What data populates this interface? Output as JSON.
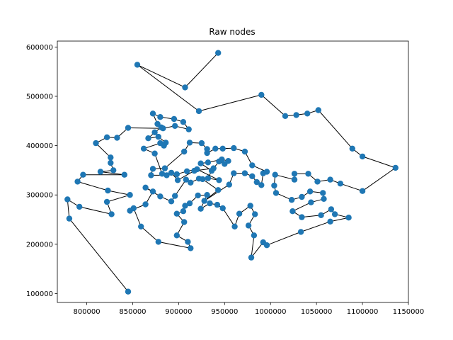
{
  "chart_data": {
    "type": "scatter",
    "title": "Raw nodes",
    "xlabel": "",
    "ylabel": "",
    "xlim": [
      768000,
      1150000
    ],
    "ylim": [
      82000,
      612000
    ],
    "xticks": [
      800000,
      850000,
      900000,
      950000,
      1000000,
      1050000,
      1100000,
      1150000
    ],
    "xtick_labels": [
      "800000",
      "850000",
      "900000",
      "950000",
      "1000000",
      "1050000",
      "1100000",
      "1150000"
    ],
    "yticks": [
      100000,
      200000,
      300000,
      400000,
      500000,
      600000
    ],
    "ytick_labels": [
      "100000",
      "200000",
      "300000",
      "400000",
      "500000",
      "600000"
    ],
    "grid": false,
    "marker_color": "#1f77b4",
    "line_color": "#000000",
    "series": [
      {
        "points": [
          [
            943000,
            588000
          ],
          [
            907000,
            518000
          ],
          [
            855000,
            564000
          ],
          [
            922000,
            470000
          ],
          [
            990000,
            503000
          ],
          [
            1016000,
            460000
          ],
          [
            1028000,
            462000
          ],
          [
            1040000,
            465000
          ],
          [
            1052000,
            472000
          ],
          [
            1089000,
            394000
          ],
          [
            1100000,
            378000
          ],
          [
            1136000,
            355000
          ],
          [
            1100000,
            308000
          ],
          [
            1076000,
            323000
          ],
          [
            1065000,
            331000
          ],
          [
            1051000,
            327000
          ],
          [
            1041000,
            343000
          ],
          [
            1026000,
            343000
          ],
          [
            1026000,
            331000
          ],
          [
            1005000,
            341000
          ],
          [
            1004000,
            319000
          ],
          [
            1006000,
            304000
          ],
          [
            1023000,
            290000
          ],
          [
            1034000,
            296000
          ],
          [
            1043000,
            307000
          ],
          [
            1057000,
            304000
          ],
          [
            1058000,
            292000
          ],
          [
            1044000,
            285000
          ],
          [
            1024000,
            267000
          ],
          [
            1034000,
            255000
          ],
          [
            1055000,
            259000
          ],
          [
            1066000,
            271000
          ],
          [
            1070000,
            261000
          ],
          [
            1085000,
            254000
          ],
          [
            1065000,
            246000
          ],
          [
            1033000,
            225000
          ],
          [
            996000,
            198000
          ],
          [
            992000,
            204000
          ],
          [
            979000,
            173000
          ],
          [
            982000,
            218000
          ],
          [
            976000,
            238000
          ],
          [
            983000,
            261000
          ],
          [
            978000,
            278000
          ],
          [
            966000,
            262000
          ],
          [
            961000,
            236000
          ],
          [
            948000,
            273000
          ],
          [
            942000,
            280000
          ],
          [
            934000,
            283000
          ],
          [
            924000,
            272000
          ],
          [
            931000,
            300000
          ],
          [
            921000,
            299000
          ],
          [
            912000,
            283000
          ],
          [
            907000,
            278000
          ],
          [
            905000,
            267000
          ],
          [
            898000,
            262000
          ],
          [
            906000,
            245000
          ],
          [
            898000,
            218000
          ],
          [
            910000,
            205000
          ],
          [
            913000,
            192000
          ],
          [
            878000,
            205000
          ],
          [
            859000,
            236000
          ],
          [
            851000,
            273000
          ],
          [
            847000,
            268000
          ],
          [
            864000,
            281000
          ],
          [
            872000,
            307000
          ],
          [
            864000,
            315000
          ],
          [
            880000,
            297000
          ],
          [
            892000,
            287000
          ],
          [
            896000,
            298000
          ],
          [
            908000,
            331000
          ],
          [
            913000,
            325000
          ],
          [
            922000,
            333000
          ],
          [
            926000,
            332000
          ],
          [
            943000,
            310000
          ],
          [
            928000,
            288000
          ],
          [
            955000,
            321000
          ],
          [
            960000,
            344000
          ],
          [
            972000,
            344000
          ],
          [
            980000,
            338000
          ],
          [
            985000,
            326000
          ],
          [
            990000,
            320000
          ],
          [
            992000,
            344000
          ],
          [
            996000,
            347000
          ],
          [
            980000,
            360000
          ],
          [
            972000,
            388000
          ],
          [
            960000,
            395000
          ],
          [
            948000,
            394000
          ],
          [
            940000,
            394000
          ],
          [
            931000,
            385000
          ],
          [
            931000,
            393000
          ],
          [
            925000,
            405000
          ],
          [
            912000,
            406000
          ],
          [
            906000,
            388000
          ],
          [
            885000,
            354000
          ],
          [
            872000,
            353000
          ],
          [
            870000,
            340000
          ],
          [
            887000,
            340000
          ],
          [
            892000,
            345000
          ],
          [
            899000,
            330000
          ],
          [
            917000,
            349000
          ],
          [
            938000,
            354000
          ],
          [
            944000,
            368000
          ],
          [
            950000,
            363000
          ],
          [
            954000,
            369000
          ],
          [
            947000,
            372000
          ],
          [
            932000,
            366000
          ],
          [
            924000,
            364000
          ],
          [
            936000,
            349000
          ],
          [
            932000,
            334000
          ],
          [
            944000,
            330000
          ],
          [
            920000,
            352000
          ],
          [
            909000,
            348000
          ],
          [
            898000,
            342000
          ],
          [
            882000,
            343000
          ],
          [
            874000,
            384000
          ],
          [
            862000,
            394000
          ],
          [
            880000,
            405000
          ],
          [
            884000,
            400000
          ],
          [
            886000,
            406000
          ],
          [
            878000,
            418000
          ],
          [
            867000,
            415000
          ],
          [
            874000,
            427000
          ],
          [
            881000,
            437000
          ],
          [
            877000,
            444000
          ],
          [
            872000,
            465000
          ],
          [
            880000,
            458000
          ],
          [
            895000,
            454000
          ],
          [
            905000,
            448000
          ],
          [
            911000,
            433000
          ],
          [
            896000,
            440000
          ],
          [
            883000,
            435000
          ],
          [
            845000,
            436000
          ],
          [
            833000,
            416000
          ],
          [
            822000,
            417000
          ],
          [
            810000,
            405000
          ],
          [
            826000,
            376000
          ],
          [
            826000,
            365000
          ],
          [
            829000,
            350000
          ],
          [
            815000,
            347000
          ],
          [
            841000,
            341000
          ],
          [
            796000,
            341000
          ],
          [
            790000,
            327000
          ],
          [
            823000,
            309000
          ],
          [
            847000,
            300000
          ],
          [
            822000,
            286000
          ],
          [
            827000,
            261000
          ],
          [
            792000,
            276000
          ],
          [
            779000,
            291000
          ],
          [
            781000,
            252000
          ],
          [
            845000,
            104000
          ]
        ]
      }
    ]
  }
}
